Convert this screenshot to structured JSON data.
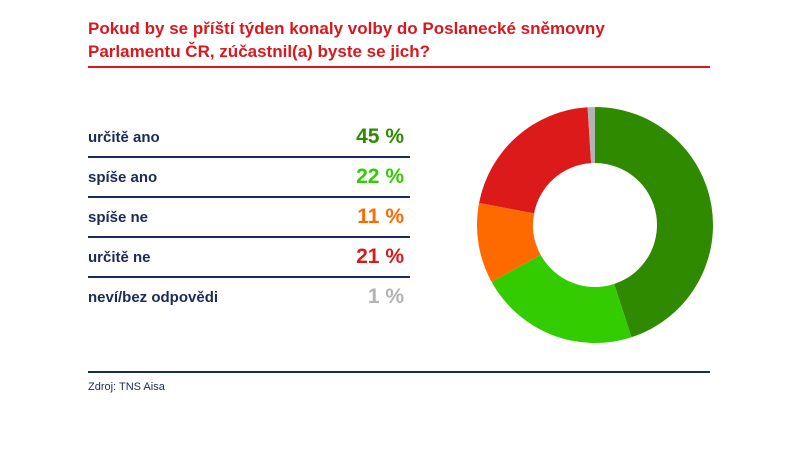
{
  "title_line1": "Pokud by se příští týden konaly volby do Poslanecké sněmovny",
  "title_line2": "Parlamentu ČR, zúčastnil(a) byste se jich?",
  "source": "Zdroj: TNS Aisa",
  "colors": {
    "title": "#d7191f",
    "text": "#1a2a5a"
  },
  "chart_data": {
    "type": "pie",
    "donut": true,
    "title": "Pokud by se příští týden konaly volby do Poslanecké sněmovny Parlamentu ČR, zúčastnil(a) byste se jich?",
    "categories": [
      "určitě ano",
      "spíše ano",
      "spíše ne",
      "určitě ne",
      "neví/bez odpovědi"
    ],
    "values": [
      45,
      22,
      11,
      21,
      1
    ],
    "value_labels": [
      "45 %",
      "22 %",
      "11 %",
      "21 %",
      "1 %"
    ],
    "colors": [
      "#2f8a00",
      "#33cc00",
      "#ff6a00",
      "#dd1a1a",
      "#b3b3b3"
    ],
    "legend_position": "left"
  }
}
